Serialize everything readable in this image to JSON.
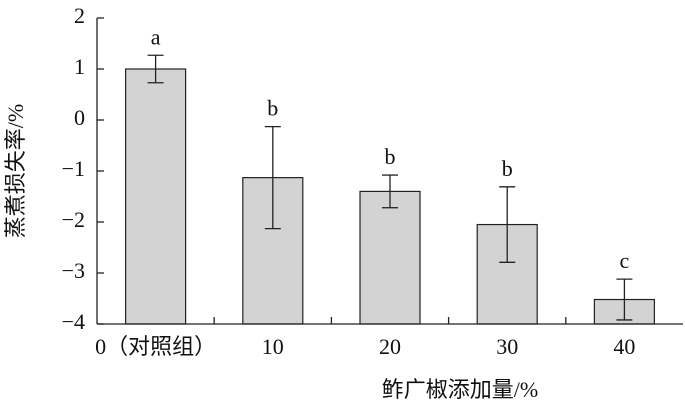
{
  "chart_data": {
    "type": "bar",
    "xlabel": "鲊广椒添加量/%",
    "ylabel": "蒸煮损失率/%",
    "categories": [
      "0（对照组）",
      "10",
      "20",
      "30",
      "40"
    ],
    "values": [
      1.0,
      -1.13,
      -1.4,
      -2.05,
      -3.52
    ],
    "errors": [
      0.27,
      1.0,
      0.32,
      0.74,
      0.4
    ],
    "significance": [
      "a",
      "b",
      "b",
      "b",
      "c"
    ],
    "color": "#d3d3d3",
    "ylim": [
      -4,
      2
    ],
    "yticks": [
      {
        "value": -4,
        "label": "−4"
      },
      {
        "value": -3,
        "label": "−3"
      },
      {
        "value": -2,
        "label": "−2"
      },
      {
        "value": -1,
        "label": "−1"
      },
      0,
      1,
      2
    ]
  }
}
